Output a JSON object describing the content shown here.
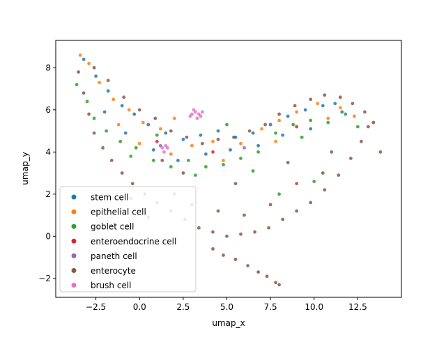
{
  "chart_data": {
    "type": "scatter",
    "title": "",
    "xlabel": "umap_x",
    "ylabel": "umap_y",
    "xlim": [
      -4.8,
      15.0
    ],
    "ylim": [
      -2.9,
      9.3
    ],
    "xticks": [
      -2.5,
      0.0,
      2.5,
      5.0,
      7.5,
      10.0,
      12.5
    ],
    "xtick_labels": [
      "−2.5",
      "0.0",
      "2.5",
      "5.0",
      "7.5",
      "10.0",
      "12.5"
    ],
    "yticks": [
      -2,
      0,
      2,
      4,
      6,
      8
    ],
    "ytick_labels": [
      "−2",
      "0",
      "2",
      "4",
      "6",
      "8"
    ],
    "grid": false,
    "legend_position": "lower-left",
    "series": [
      {
        "name": "stem cell",
        "color": "#1f77b4",
        "points": [
          [
            -3.2,
            8.4
          ],
          [
            -2.5,
            7.6
          ],
          [
            -1.8,
            6.9
          ],
          [
            -1.0,
            6.2
          ],
          [
            -0.3,
            5.8
          ],
          [
            0.5,
            5.3
          ],
          [
            1.5,
            4.9
          ],
          [
            2.5,
            4.6
          ],
          [
            3.5,
            4.8
          ],
          [
            4.5,
            5.0
          ],
          [
            5.5,
            4.7
          ],
          [
            6.5,
            4.9
          ],
          [
            7.5,
            5.3
          ],
          [
            8.5,
            5.7
          ],
          [
            9.5,
            6.0
          ],
          [
            10.5,
            6.2
          ],
          [
            11.2,
            6.3
          ],
          [
            -2.0,
            5.9
          ],
          [
            -0.8,
            4.9
          ],
          [
            0.8,
            4.1
          ],
          [
            2.2,
            3.6
          ],
          [
            3.8,
            3.9
          ],
          [
            5.2,
            4.1
          ],
          [
            6.8,
            4.3
          ],
          [
            8.2,
            4.8
          ],
          [
            9.8,
            5.1
          ],
          [
            11.6,
            5.9
          ]
        ]
      },
      {
        "name": "epithelial cell",
        "color": "#ff7f0e",
        "points": [
          [
            -3.4,
            8.6
          ],
          [
            -2.9,
            8.2
          ],
          [
            -2.3,
            7.3
          ],
          [
            -1.5,
            6.5
          ],
          [
            -0.6,
            6.0
          ],
          [
            0.2,
            5.4
          ],
          [
            1.2,
            5.1
          ],
          [
            2.0,
            5.6
          ],
          [
            3.0,
            4.3
          ],
          [
            4.2,
            4.5
          ],
          [
            5.8,
            4.4
          ],
          [
            7.0,
            5.1
          ],
          [
            8.0,
            5.5
          ],
          [
            9.0,
            5.9
          ],
          [
            10.2,
            6.3
          ],
          [
            11.5,
            6.1
          ],
          [
            12.3,
            5.7
          ],
          [
            -1.2,
            5.3
          ],
          [
            0.0,
            4.4
          ],
          [
            1.8,
            3.9
          ],
          [
            4.8,
            3.6
          ],
          [
            7.8,
            4.5
          ],
          [
            10.8,
            5.6
          ]
        ]
      },
      {
        "name": "goblet cell",
        "color": "#2ca02c",
        "points": [
          [
            -3.6,
            7.2
          ],
          [
            -3.0,
            6.4
          ],
          [
            -2.6,
            5.6
          ],
          [
            -1.9,
            5.0
          ],
          [
            -1.1,
            4.5
          ],
          [
            -0.2,
            4.2
          ],
          [
            0.8,
            3.6
          ],
          [
            1.8,
            3.3
          ],
          [
            2.8,
            3.6
          ],
          [
            3.8,
            3.3
          ],
          [
            4.8,
            3.4
          ],
          [
            5.8,
            3.7
          ],
          [
            6.8,
            4.0
          ],
          [
            7.8,
            4.9
          ],
          [
            8.8,
            5.3
          ],
          [
            9.8,
            5.5
          ],
          [
            10.8,
            5.4
          ],
          [
            11.8,
            5.8
          ],
          [
            12.5,
            5.2
          ],
          [
            8.0,
            2.0
          ],
          [
            10.0,
            2.6
          ],
          [
            6.5,
            3.1
          ],
          [
            3.2,
            2.9
          ],
          [
            -0.5,
            3.8
          ],
          [
            1.0,
            4.8
          ],
          [
            5.0,
            5.3
          ],
          [
            9.3,
            4.7
          ]
        ]
      },
      {
        "name": "enteroendocrine cell",
        "color": "#d62728",
        "points": [
          [
            1.0,
            4.5
          ],
          [
            4.2,
            4.0
          ],
          [
            9.0,
            5.2
          ]
        ]
      },
      {
        "name": "paneth cell",
        "color": "#9467bd",
        "points": [
          [
            1.2,
            4.3
          ],
          [
            6.0,
            4.2
          ]
        ]
      },
      {
        "name": "enterocyte",
        "color": "#8c564b",
        "points": [
          [
            -3.5,
            7.8
          ],
          [
            -3.2,
            6.8
          ],
          [
            -2.9,
            5.8
          ],
          [
            -2.6,
            4.9
          ],
          [
            -2.1,
            4.2
          ],
          [
            -1.6,
            3.6
          ],
          [
            -1.0,
            3.0
          ],
          [
            -0.4,
            2.5
          ],
          [
            0.3,
            2.0
          ],
          [
            1.0,
            1.6
          ],
          [
            1.8,
            1.2
          ],
          [
            2.6,
            0.8
          ],
          [
            3.4,
            0.4
          ],
          [
            4.2,
            0.2
          ],
          [
            5.0,
            0.0
          ],
          [
            5.8,
            0.1
          ],
          [
            6.6,
            0.2
          ],
          [
            7.4,
            0.4
          ],
          [
            8.2,
            0.8
          ],
          [
            9.0,
            1.2
          ],
          [
            9.8,
            1.6
          ],
          [
            10.6,
            2.2
          ],
          [
            11.4,
            2.9
          ],
          [
            12.1,
            3.7
          ],
          [
            12.7,
            4.5
          ],
          [
            13.1,
            5.2
          ],
          [
            13.4,
            5.4
          ],
          [
            12.9,
            5.9
          ],
          [
            12.2,
            6.3
          ],
          [
            11.5,
            6.6
          ],
          [
            10.6,
            6.7
          ],
          [
            9.8,
            6.5
          ],
          [
            8.9,
            6.2
          ],
          [
            8.0,
            5.8
          ],
          [
            7.2,
            5.3
          ],
          [
            6.3,
            5.0
          ],
          [
            5.4,
            4.7
          ],
          [
            4.5,
            4.6
          ],
          [
            3.6,
            4.4
          ],
          [
            2.7,
            4.7
          ],
          [
            1.8,
            5.0
          ],
          [
            0.9,
            5.6
          ],
          [
            0.0,
            6.0
          ],
          [
            -0.9,
            6.6
          ],
          [
            -1.8,
            7.4
          ],
          [
            -2.6,
            8.0
          ],
          [
            4.2,
            -0.6
          ],
          [
            4.8,
            -0.9
          ],
          [
            5.5,
            -1.1
          ],
          [
            6.2,
            -1.4
          ],
          [
            6.8,
            -1.7
          ],
          [
            7.3,
            -1.9
          ],
          [
            7.8,
            -2.2
          ],
          [
            8.0,
            -2.3
          ],
          [
            2.0,
            2.0
          ],
          [
            3.0,
            1.5
          ],
          [
            4.5,
            1.2
          ],
          [
            6.0,
            1.0
          ],
          [
            7.5,
            1.5
          ],
          [
            9.0,
            2.5
          ],
          [
            10.5,
            3.0
          ],
          [
            11.0,
            4.0
          ],
          [
            2.5,
            3.0
          ],
          [
            5.5,
            2.5
          ],
          [
            8.5,
            3.5
          ],
          [
            13.8,
            4.0
          ],
          [
            1.3,
            3.6
          ],
          [
            -0.5,
            1.8
          ],
          [
            0.5,
            0.9
          ]
        ]
      },
      {
        "name": "brush cell",
        "color": "#e377c2",
        "points": [
          [
            3.0,
            5.8
          ],
          [
            3.2,
            5.9
          ],
          [
            3.4,
            5.8
          ],
          [
            3.6,
            5.9
          ],
          [
            3.3,
            5.6
          ],
          [
            3.1,
            6.0
          ],
          [
            3.5,
            5.7
          ],
          [
            2.9,
            5.7
          ],
          [
            1.3,
            4.2
          ],
          [
            1.5,
            4.3
          ],
          [
            1.4,
            4.0
          ],
          [
            1.6,
            4.2
          ]
        ]
      }
    ]
  }
}
